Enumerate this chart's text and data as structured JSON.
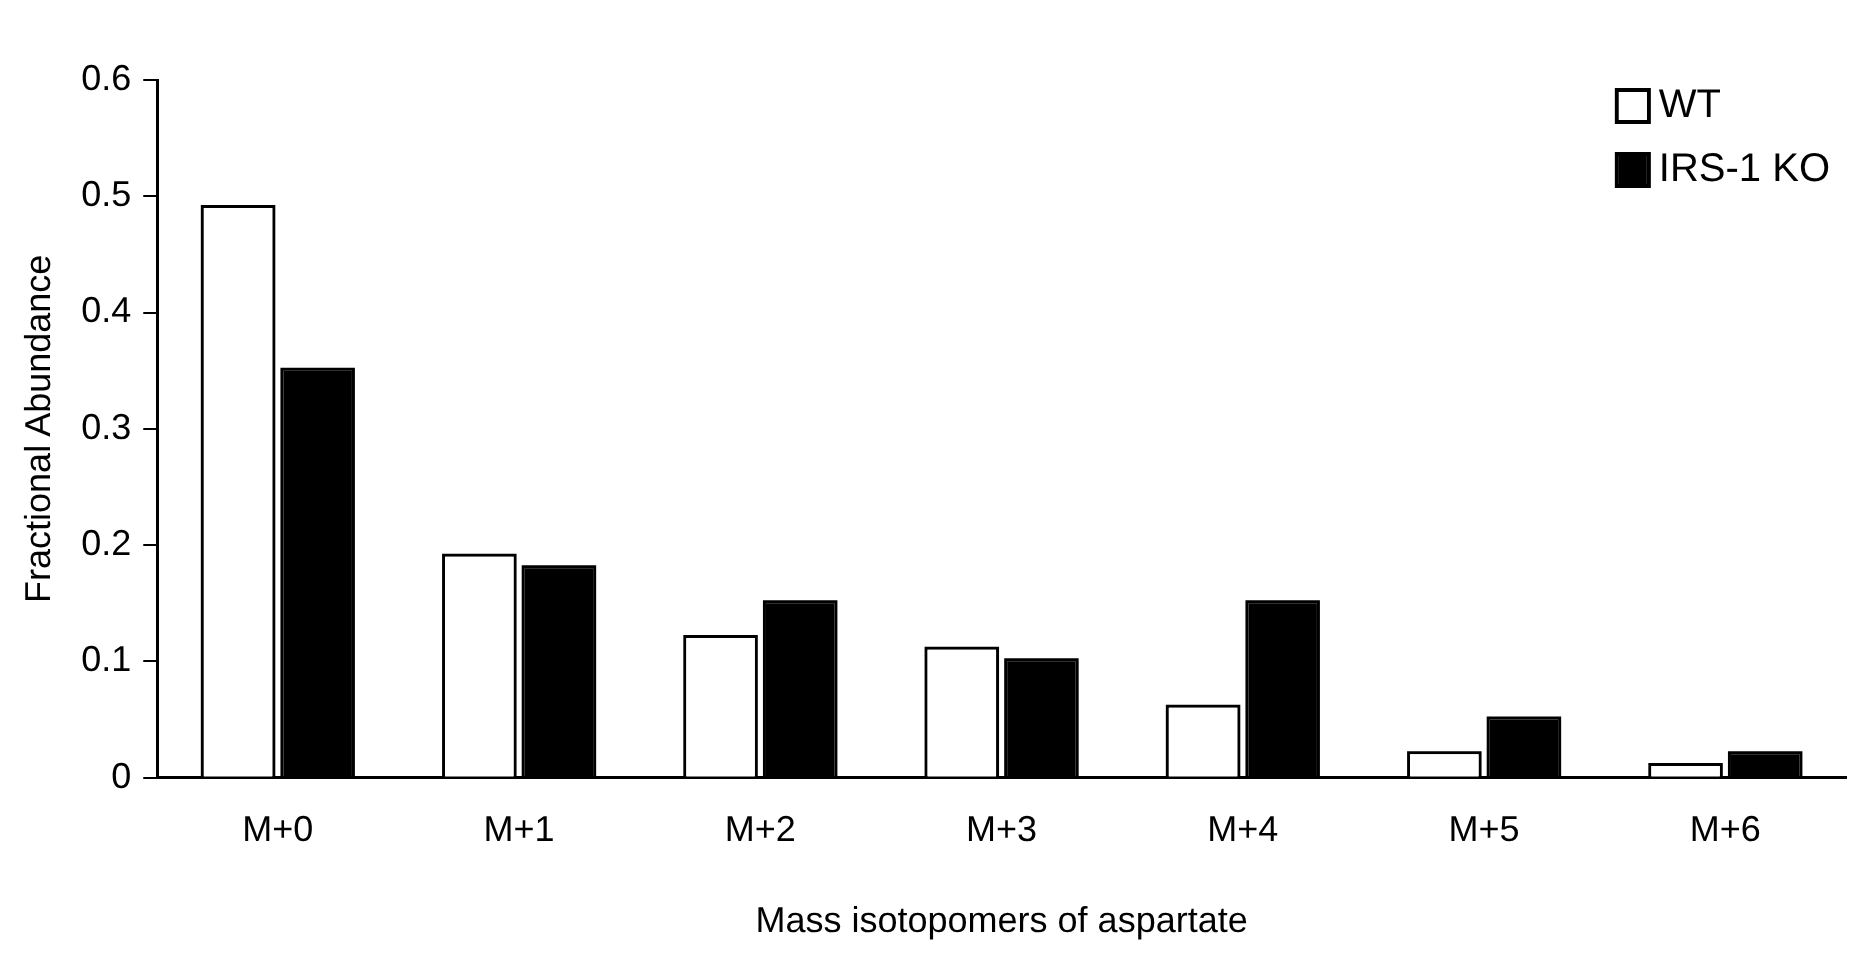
{
  "chart_data": {
    "type": "bar",
    "xlabel": "Mass isotopomers of aspartate",
    "ylabel": "Fractional Abundance",
    "categories": [
      "M+0",
      "M+1",
      "M+2",
      "M+3",
      "M+4",
      "M+5",
      "M+6"
    ],
    "series": [
      {
        "name": "WT",
        "color": "#ffffff",
        "values": [
          0.49,
          0.19,
          0.12,
          0.11,
          0.06,
          0.02,
          0.01
        ]
      },
      {
        "name": "IRS-1 KO",
        "color": "#000000",
        "values": [
          0.35,
          0.18,
          0.15,
          0.1,
          0.15,
          0.05,
          0.02
        ]
      }
    ],
    "ylim": [
      0,
      0.6
    ],
    "yticks": [
      {
        "value": 0,
        "label": "0"
      },
      {
        "value": 0.1,
        "label": "0.1"
      },
      {
        "value": 0.2,
        "label": "0.2"
      },
      {
        "value": 0.3,
        "label": "0.3"
      },
      {
        "value": 0.4,
        "label": "0.4"
      },
      {
        "value": 0.5,
        "label": "0.5"
      },
      {
        "value": 0.6,
        "label": "0.6"
      }
    ],
    "grid": false,
    "legend": "top right"
  }
}
